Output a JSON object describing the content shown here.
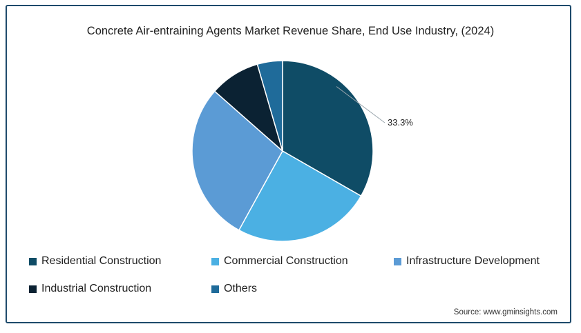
{
  "chart_data": {
    "type": "pie",
    "title": "Concrete Air-entraining Agents Market Revenue Share, End Use Industry, (2024)",
    "series": [
      {
        "name": "Residential Construction",
        "value": 33.3,
        "color": "#0f4c66",
        "label": "33.3%"
      },
      {
        "name": "Commercial Construction",
        "value": 24.7,
        "color": "#4bb0e3",
        "label": ""
      },
      {
        "name": "Infrastructure Development",
        "value": 28.5,
        "color": "#5b9bd5",
        "label": ""
      },
      {
        "name": "Industrial Construction",
        "value": 9.0,
        "color": "#0b2233",
        "label": ""
      },
      {
        "name": "Others",
        "value": 4.5,
        "color": "#1f6b9a",
        "label": ""
      }
    ],
    "start_angle_deg": 0,
    "direction": "clockwise",
    "legend_position": "bottom"
  },
  "source": "Source: www.gminsights.com"
}
